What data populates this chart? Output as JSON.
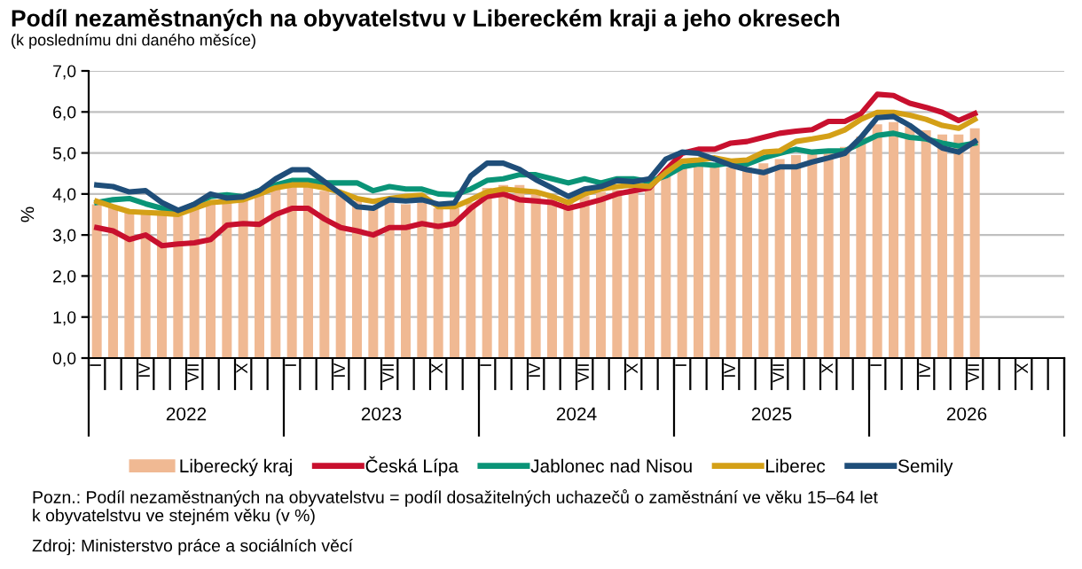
{
  "chart_data": {
    "type": "bar",
    "title": "Podíl nezaměstnaných na obyvatelstvu v Libereckém kraji a jeho okresech",
    "subtitle": "(k poslednímu dni daného měsíce)",
    "ylabel": "%",
    "categories": [
      "I",
      null,
      null,
      "IV",
      null,
      null,
      "VII",
      null,
      null,
      "X",
      null,
      null,
      "I",
      null,
      null,
      "IV",
      null,
      null,
      "VII",
      null,
      null,
      "X",
      null,
      null,
      "I",
      null,
      null,
      "IV",
      null,
      null,
      "VII",
      null,
      null,
      "X",
      null,
      null,
      "I",
      null,
      null,
      "IV",
      null,
      null,
      "VII",
      null,
      null,
      "X",
      null,
      null,
      "I",
      null,
      null,
      "IV",
      null,
      null,
      "VII",
      null,
      null,
      "X",
      null,
      null
    ],
    "series": [
      {
        "name": "Liberecký kraj",
        "color": "#f0b993",
        "values": [
          3.75,
          3.7,
          3.6,
          3.57,
          3.55,
          3.47,
          3.65,
          3.8,
          3.83,
          3.86,
          4.0,
          4.18,
          4.22,
          4.18,
          4.08,
          3.98,
          3.83,
          3.69,
          3.79,
          3.75,
          3.79,
          3.65,
          3.65,
          3.79,
          4.15,
          4.22,
          4.22,
          4.08,
          3.95,
          3.85,
          3.95,
          4.05,
          4.1,
          4.15,
          4.2,
          4.45,
          4.7,
          4.7,
          4.7,
          4.65,
          4.65,
          4.75,
          4.85,
          4.95,
          5.0,
          5.05,
          5.15,
          5.4,
          5.7,
          5.75,
          5.65,
          5.55,
          5.45,
          5.45,
          5.6,
          null,
          null,
          null,
          null,
          null
        ]
      },
      {
        "name": "Česká Lípa",
        "type": "line",
        "color": "#c8102e",
        "values": [
          3.18,
          3.1,
          2.89,
          3.0,
          2.74,
          2.78,
          2.81,
          2.89,
          3.24,
          3.28,
          3.26,
          3.5,
          3.65,
          3.65,
          3.39,
          3.18,
          3.1,
          3.0,
          3.18,
          3.18,
          3.28,
          3.21,
          3.28,
          3.65,
          3.94,
          4.0,
          3.86,
          3.83,
          3.79,
          3.65,
          3.75,
          3.86,
          4.0,
          4.08,
          4.15,
          4.59,
          4.99,
          5.09,
          5.09,
          5.24,
          5.28,
          5.38,
          5.48,
          5.53,
          5.57,
          5.77,
          5.77,
          5.96,
          6.43,
          6.4,
          6.21,
          6.11,
          5.99,
          5.79,
          5.96,
          null,
          null,
          null,
          null,
          null
        ]
      },
      {
        "name": "Jablonec nad Nisou",
        "type": "line",
        "color": "#0a9477",
        "values": [
          3.79,
          3.86,
          3.89,
          3.76,
          3.65,
          3.57,
          3.75,
          3.94,
          3.98,
          3.93,
          4.08,
          4.22,
          4.33,
          4.33,
          4.27,
          4.27,
          4.27,
          4.08,
          4.18,
          4.12,
          4.12,
          4.0,
          3.98,
          4.12,
          4.33,
          4.37,
          4.47,
          4.47,
          4.37,
          4.27,
          4.37,
          4.27,
          4.37,
          4.37,
          4.3,
          4.44,
          4.66,
          4.73,
          4.7,
          4.76,
          4.73,
          4.88,
          4.99,
          5.09,
          5.02,
          5.05,
          5.05,
          5.24,
          5.43,
          5.48,
          5.38,
          5.34,
          5.24,
          5.17,
          5.24,
          null,
          null,
          null,
          null,
          null
        ]
      },
      {
        "name": "Liberec",
        "type": "line",
        "color": "#d4a017",
        "values": [
          3.82,
          3.69,
          3.57,
          3.55,
          3.53,
          3.5,
          3.65,
          3.79,
          3.82,
          3.86,
          4.0,
          4.15,
          4.22,
          4.22,
          4.15,
          4.04,
          3.89,
          3.82,
          3.89,
          3.94,
          3.97,
          3.69,
          3.69,
          3.86,
          4.05,
          4.12,
          4.08,
          4.05,
          3.94,
          3.79,
          4.0,
          4.12,
          4.18,
          4.22,
          4.18,
          4.52,
          4.8,
          4.83,
          4.88,
          4.8,
          4.83,
          5.02,
          5.05,
          5.28,
          5.34,
          5.41,
          5.56,
          5.82,
          5.99,
          5.99,
          5.92,
          5.82,
          5.67,
          5.6,
          5.82,
          null,
          null,
          null,
          null,
          null
        ]
      },
      {
        "name": "Semily",
        "type": "line",
        "color": "#1f4e79",
        "values": [
          4.22,
          4.18,
          4.05,
          4.08,
          3.79,
          3.6,
          3.75,
          4.0,
          3.9,
          3.93,
          4.08,
          4.37,
          4.59,
          4.59,
          4.3,
          4.0,
          3.69,
          3.65,
          3.86,
          3.83,
          3.86,
          3.75,
          3.78,
          4.44,
          4.75,
          4.75,
          4.6,
          4.35,
          4.15,
          3.94,
          4.12,
          4.18,
          4.33,
          4.3,
          4.37,
          4.85,
          5.02,
          4.99,
          4.85,
          4.7,
          4.59,
          4.52,
          4.66,
          4.66,
          4.78,
          4.88,
          4.99,
          5.38,
          5.86,
          5.89,
          5.67,
          5.38,
          5.12,
          5.02,
          5.28,
          null,
          null,
          null,
          null,
          null
        ]
      }
    ],
    "ylim": [
      0,
      7
    ],
    "yticks": [
      {
        "value": 0,
        "label": "0,0"
      },
      {
        "value": 1,
        "label": "1,0"
      },
      {
        "value": 2,
        "label": "2,0"
      },
      {
        "value": 3,
        "label": "3,0"
      },
      {
        "value": 4,
        "label": "4,0"
      },
      {
        "value": 5,
        "label": "5,0"
      },
      {
        "value": 6,
        "label": "6,0"
      },
      {
        "value": 7,
        "label": "7,0"
      }
    ],
    "grid": "y",
    "legend": "bottom",
    "line_style": "solid",
    "marker": "none",
    "annotations": [
      "2022",
      "2023",
      "2024",
      "2025",
      "2026",
      "Pozn.: Podíl nezaměstnaných na obyvatelstvu = podíl dosažitelných uchazečů o zaměstnání ve věku 15–64 let\nk obyvatelstvu ve stejném věku (v %)",
      "Zdroj: Ministerstvo práce a sociálních věcí"
    ]
  }
}
